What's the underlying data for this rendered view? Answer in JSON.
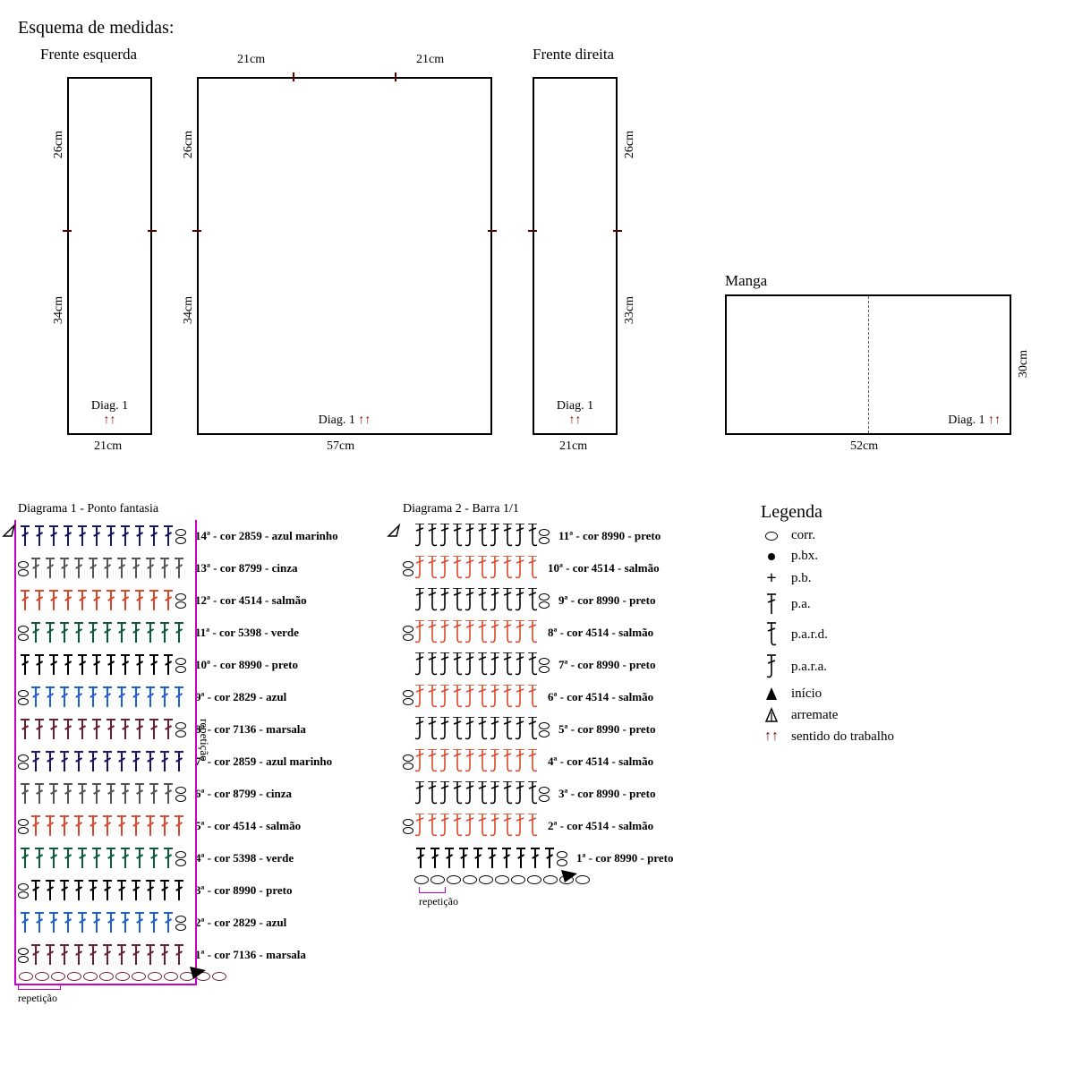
{
  "title": "Esquema de medidas:",
  "pieces": {
    "frente_esquerda": {
      "label": "Frente esquerda",
      "width": "21cm",
      "upper": "26cm",
      "lower": "34cm",
      "diag": "Diag. 1"
    },
    "costas": {
      "top_left": "21cm",
      "top_right": "21cm",
      "width": "57cm",
      "upper": "26cm",
      "lower": "34cm",
      "diag": "Diag. 1"
    },
    "frente_direita": {
      "label": "Frente direita",
      "width": "21cm",
      "upper": "26cm",
      "lower": "33cm",
      "diag": "Diag. 1"
    },
    "manga": {
      "label": "Manga",
      "width": "52cm",
      "height": "30cm",
      "diag": "Diag. 1"
    }
  },
  "colors": {
    "marsala": "#6b2030",
    "azul": "#1e5fd6",
    "preto": "#000000",
    "verde": "#0a5c36",
    "salmao": "#d84a2b",
    "cinza": "#555555",
    "azul_marinho": "#16166b",
    "magenta_box": "#c800c8",
    "arrow": "#8b0000"
  },
  "diagram1": {
    "title": "Diagrama 1 - Ponto fantasia",
    "side": "repetição",
    "repeat": "repetição",
    "stitch_count": 11,
    "rows": [
      {
        "n": "14ª",
        "label": "cor 2859 - azul marinho",
        "c": "azul_marinho"
      },
      {
        "n": "13ª",
        "label": "cor 8799 - cinza",
        "c": "cinza"
      },
      {
        "n": "12ª",
        "label": "cor 4514 - salmão",
        "c": "salmao"
      },
      {
        "n": "11ª",
        "label": "cor 5398 - verde",
        "c": "verde"
      },
      {
        "n": "10ª",
        "label": "cor 8990 - preto",
        "c": "preto"
      },
      {
        "n": "9ª",
        "label": "cor 2829 - azul",
        "c": "azul"
      },
      {
        "n": "8ª",
        "label": "cor 7136 - marsala",
        "c": "marsala"
      },
      {
        "n": "7ª",
        "label": "cor 2859 - azul marinho",
        "c": "azul_marinho"
      },
      {
        "n": "6ª",
        "label": "cor 8799 - cinza",
        "c": "cinza"
      },
      {
        "n": "5ª",
        "label": "cor 4514 - salmão",
        "c": "salmao"
      },
      {
        "n": "4ª",
        "label": "cor 5398 - verde",
        "c": "verde"
      },
      {
        "n": "3ª",
        "label": "cor 8990 - preto",
        "c": "preto"
      },
      {
        "n": "2ª",
        "label": "cor 2829 - azul",
        "c": "azul"
      },
      {
        "n": "1ª",
        "label": "cor 7136 - marsala",
        "c": "marsala"
      }
    ]
  },
  "diagram2": {
    "title": "Diagrama 2 - Barra 1/1",
    "repeat": "repetição",
    "stitch_count": 10,
    "rows": [
      {
        "n": "11ª",
        "label": "cor 8990 - preto",
        "c": "preto"
      },
      {
        "n": "10ª",
        "label": "cor 4514 - salmão",
        "c": "salmao"
      },
      {
        "n": "9ª",
        "label": "cor 8990 - preto",
        "c": "preto"
      },
      {
        "n": "8ª",
        "label": "cor 4514 - salmão",
        "c": "salmao"
      },
      {
        "n": "7ª",
        "label": "cor 8990 - preto",
        "c": "preto"
      },
      {
        "n": "6ª",
        "label": "cor 4514 - salmão",
        "c": "salmao"
      },
      {
        "n": "5ª",
        "label": "cor 8990 - preto",
        "c": "preto"
      },
      {
        "n": "4ª",
        "label": "cor 4514 - salmão",
        "c": "salmao"
      },
      {
        "n": "3ª",
        "label": "cor 8990 - preto",
        "c": "preto"
      },
      {
        "n": "2ª",
        "label": "cor 4514 - salmão",
        "c": "salmao"
      },
      {
        "n": "1ª",
        "label": "cor 8990 - preto",
        "c": "preto"
      }
    ]
  },
  "legend": {
    "title": "Legenda",
    "items": [
      {
        "sym": "o",
        "text": "corr."
      },
      {
        "sym": "dot",
        "text": "p.bx."
      },
      {
        "sym": "plus",
        "text": "p.b."
      },
      {
        "sym": "dc",
        "text": "p.a."
      },
      {
        "sym": "pard",
        "text": "p.a.r.d."
      },
      {
        "sym": "para",
        "text": "p.a.r.a."
      },
      {
        "sym": "tri_fill",
        "text": "início"
      },
      {
        "sym": "tri_open",
        "text": "arremate"
      },
      {
        "sym": "arrows",
        "text": "sentido do trabalho"
      }
    ]
  }
}
